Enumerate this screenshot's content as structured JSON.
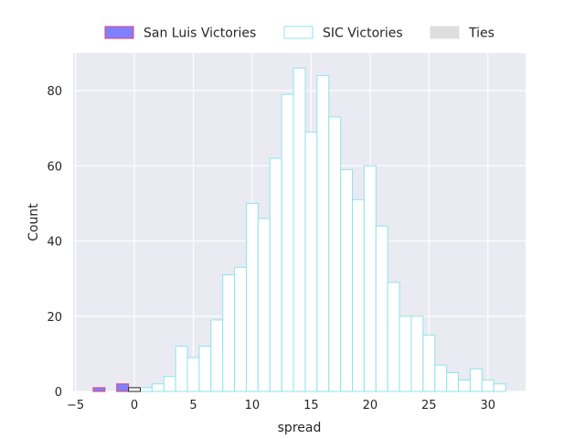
{
  "chart_data": {
    "type": "bar",
    "subtype": "histogram",
    "xlabel": "spread",
    "ylabel": "Count",
    "xlim": [
      -5.2,
      33.2
    ],
    "ylim": [
      0,
      90
    ],
    "xticks": [
      -5,
      0,
      5,
      10,
      15,
      20,
      25,
      30
    ],
    "yticks": [
      0,
      20,
      40,
      60,
      80
    ],
    "bin_width": 1,
    "grid": true,
    "background": "#eaeaf2",
    "legend_position": "top-center, above plot",
    "series": [
      {
        "name": "San Luis Victories",
        "fill": "#8080ff",
        "edge": "#e0407a",
        "bins": [
          {
            "x": -3,
            "count": 1
          },
          {
            "x": -1,
            "count": 2
          }
        ]
      },
      {
        "name": "SIC Victories",
        "fill": "#ffffff",
        "edge": "#8fe3ec",
        "bins": [
          {
            "x": 1,
            "count": 1
          },
          {
            "x": 2,
            "count": 2
          },
          {
            "x": 3,
            "count": 4
          },
          {
            "x": 4,
            "count": 12
          },
          {
            "x": 5,
            "count": 9
          },
          {
            "x": 6,
            "count": 12
          },
          {
            "x": 7,
            "count": 19
          },
          {
            "x": 8,
            "count": 31
          },
          {
            "x": 9,
            "count": 33
          },
          {
            "x": 10,
            "count": 50
          },
          {
            "x": 11,
            "count": 46
          },
          {
            "x": 12,
            "count": 62
          },
          {
            "x": 13,
            "count": 79
          },
          {
            "x": 14,
            "count": 86
          },
          {
            "x": 15,
            "count": 69
          },
          {
            "x": 16,
            "count": 84
          },
          {
            "x": 17,
            "count": 73
          },
          {
            "x": 18,
            "count": 59
          },
          {
            "x": 19,
            "count": 51
          },
          {
            "x": 20,
            "count": 60
          },
          {
            "x": 21,
            "count": 44
          },
          {
            "x": 22,
            "count": 29
          },
          {
            "x": 23,
            "count": 20
          },
          {
            "x": 24,
            "count": 20
          },
          {
            "x": 25,
            "count": 15
          },
          {
            "x": 26,
            "count": 7
          },
          {
            "x": 27,
            "count": 5
          },
          {
            "x": 28,
            "count": 3
          },
          {
            "x": 29,
            "count": 6
          },
          {
            "x": 30,
            "count": 3
          },
          {
            "x": 31,
            "count": 2
          }
        ]
      },
      {
        "name": "Ties",
        "fill": "#ffffff",
        "edge": "#222222",
        "legend_swatch": "#dedede",
        "bins": [
          {
            "x": 0,
            "count": 1
          }
        ]
      }
    ]
  }
}
